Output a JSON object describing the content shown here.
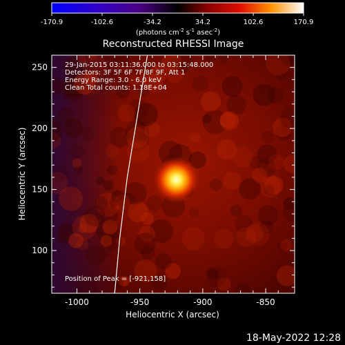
{
  "colorbar": {
    "ticks": [
      "-170.9",
      "-102.6",
      "-34.2",
      "34.2",
      "102.6",
      "170.9"
    ],
    "units_main": "(photons cm",
    "units_exp1": "-2",
    "units_mid": " s",
    "units_exp2": "-1",
    "units_mid2": " asec",
    "units_exp3": "-2",
    "units_end": ")",
    "min": -170.9,
    "max": 170.9
  },
  "chart_data": {
    "type": "heatmap",
    "title": "Reconstructed RHESSI Image",
    "xlabel": "Heliocentric X (arcsec)",
    "ylabel": "Heliocentric Y (arcsec)",
    "xlim": [
      -1020,
      -827
    ],
    "ylim": [
      65,
      260
    ],
    "xticks": [
      "-1000",
      "-950",
      "-900",
      "-850"
    ],
    "yticks": [
      "100",
      "150",
      "200",
      "250"
    ],
    "annotations": [
      "29-Jan-2015 03:11:36.000 to 03:15:48.000",
      "Detectors: 3F 5F 6F 7F 8F 9F, Att 1",
      "Energy Range: 3.0 - 6.0 keV",
      "Clean    Total counts: 1.18E+04"
    ],
    "peak_label": "Position of Peak = [-921,158]",
    "peak": {
      "x": -921,
      "y": 158
    },
    "limb": [
      {
        "x": -970,
        "y": 65
      },
      {
        "x": -966,
        "y": 110
      },
      {
        "x": -960,
        "y": 160
      },
      {
        "x": -952,
        "y": 210
      },
      {
        "x": -944,
        "y": 260
      }
    ]
  },
  "timestamp": "18-May-2022 12:28"
}
